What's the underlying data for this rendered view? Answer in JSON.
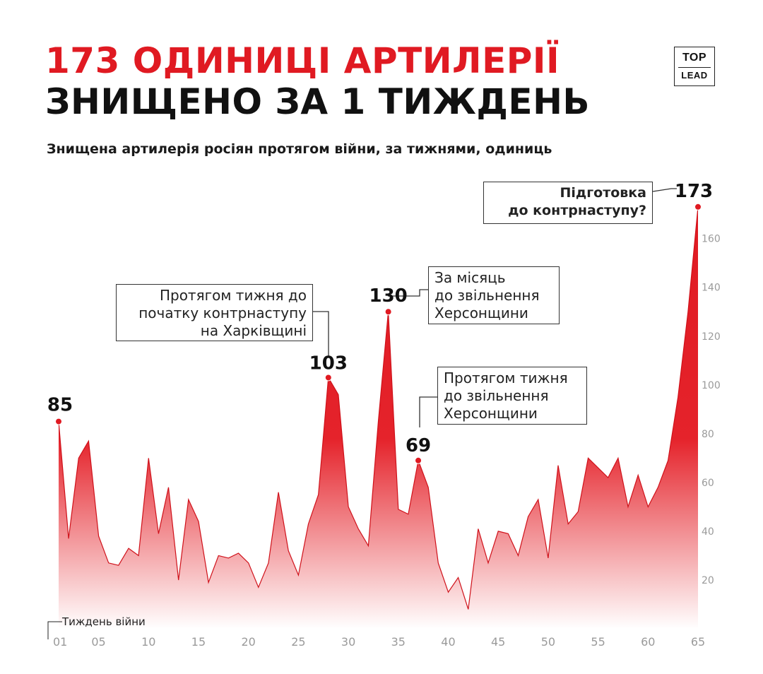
{
  "header": {
    "title_line1": "173 ОДИНИЦІ АРТИЛЕРІЇ",
    "title_line2": "ЗНИЩЕНО ЗА 1 ТИЖДЕНЬ",
    "subtitle": "Знищена артилерія росіян протягом війни, за тижнями, одиниць"
  },
  "logo": {
    "top": "TOP",
    "bottom": "LEAD"
  },
  "annotations": {
    "kharkiv": "Протягом тижня до\nпочатку контрнаступу\nна Харківщині",
    "kherson_month": "За місяць\nдо звільнення\nХерсонщини",
    "kherson_week": "Протягом тижня\nдо звільнення\nХерсонщини",
    "counteroffensive": "Підготовка\nдо контрнаступу?"
  },
  "colors": {
    "accent": "#e01a22",
    "title_dark": "#111111",
    "axis_text": "#9a9a9a"
  },
  "chart_data": {
    "type": "area",
    "title": "Знищена артилерія росіян протягом війни, за тижнями, одиниць",
    "xlabel": "Тиждень війни",
    "ylabel": "",
    "x_tick_labels": [
      "01",
      "05",
      "10",
      "15",
      "20",
      "25",
      "30",
      "35",
      "40",
      "45",
      "50",
      "55",
      "60",
      "65"
    ],
    "y_ticks": [
      20,
      40,
      60,
      80,
      100,
      120,
      140,
      160
    ],
    "ylim": [
      0,
      175
    ],
    "xlim": [
      1,
      65
    ],
    "grid": false,
    "x": [
      1,
      2,
      3,
      4,
      5,
      6,
      7,
      8,
      9,
      10,
      11,
      12,
      13,
      14,
      15,
      16,
      17,
      18,
      19,
      20,
      21,
      22,
      23,
      24,
      25,
      26,
      27,
      28,
      29,
      30,
      31,
      32,
      33,
      34,
      35,
      36,
      37,
      38,
      39,
      40,
      41,
      42,
      43,
      44,
      45,
      46,
      47,
      48,
      49,
      50,
      51,
      52,
      53,
      54,
      55,
      56,
      57,
      58,
      59,
      60,
      61,
      62,
      63,
      64,
      65
    ],
    "values": [
      85,
      37,
      70,
      77,
      38,
      27,
      26,
      33,
      30,
      70,
      39,
      58,
      20,
      53,
      44,
      19,
      30,
      29,
      31,
      27,
      17,
      27,
      56,
      32,
      22,
      43,
      55,
      103,
      96,
      50,
      41,
      34,
      85,
      130,
      49,
      47,
      69,
      58,
      27,
      15,
      21,
      8,
      41,
      27,
      40,
      39,
      30,
      46,
      53,
      29,
      67,
      43,
      48,
      70,
      66,
      62,
      70,
      50,
      63,
      50,
      58,
      69,
      95,
      130,
      173
    ],
    "labeled_points": [
      {
        "week": 1,
        "value": 85,
        "label": "85"
      },
      {
        "week": 28,
        "value": 103,
        "label": "103"
      },
      {
        "week": 34,
        "value": 130,
        "label": "130"
      },
      {
        "week": 37,
        "value": 69,
        "label": "69"
      },
      {
        "week": 65,
        "value": 173,
        "label": "173"
      }
    ]
  }
}
